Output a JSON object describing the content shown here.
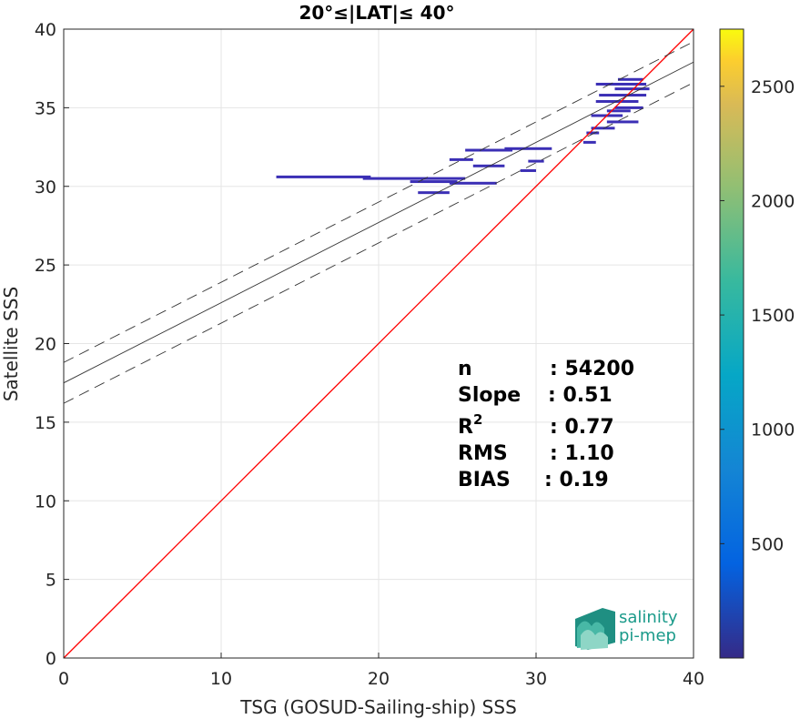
{
  "chart_data": {
    "type": "scatter",
    "title": "20°≤|LAT|≤ 40°",
    "xlabel": "TSG (GOSUD-Sailing-ship) SSS",
    "ylabel": "Satellite SSS",
    "xlim": [
      0,
      40
    ],
    "ylim": [
      0,
      40
    ],
    "xticks": [
      0,
      10,
      20,
      30,
      40
    ],
    "yticks": [
      0,
      5,
      10,
      15,
      20,
      25,
      30,
      35,
      40
    ],
    "grid": true,
    "colorbar": {
      "range": [
        0,
        2750
      ],
      "ticks": [
        500,
        1000,
        1500,
        2000,
        2500
      ],
      "colormap": "parula"
    },
    "reference_line": {
      "name": "1:1",
      "x": [
        0,
        40
      ],
      "y": [
        0,
        40
      ],
      "color": "#ff0000"
    },
    "fit_line": {
      "intercept": 17.5,
      "slope": 0.51,
      "color": "#000000"
    },
    "fit_bounds": {
      "offset": 1.3,
      "style": "dashed"
    },
    "density_segments": [
      {
        "x1": 13.5,
        "x2": 19.5,
        "y": 30.6
      },
      {
        "x1": 19.0,
        "x2": 25.5,
        "y": 30.5
      },
      {
        "x1": 22.0,
        "x2": 25.0,
        "y": 30.3
      },
      {
        "x1": 22.5,
        "x2": 24.5,
        "y": 29.6
      },
      {
        "x1": 24.5,
        "x2": 27.5,
        "y": 30.2
      },
      {
        "x1": 26.0,
        "x2": 28.0,
        "y": 31.3
      },
      {
        "x1": 24.5,
        "x2": 26.0,
        "y": 31.7
      },
      {
        "x1": 25.5,
        "x2": 28.5,
        "y": 32.3
      },
      {
        "x1": 28.0,
        "x2": 31.0,
        "y": 32.4
      },
      {
        "x1": 29.5,
        "x2": 30.5,
        "y": 31.6
      },
      {
        "x1": 29.0,
        "x2": 30.0,
        "y": 31.0
      },
      {
        "x1": 33.0,
        "x2": 33.8,
        "y": 32.8
      },
      {
        "x1": 33.2,
        "x2": 34.0,
        "y": 33.4
      },
      {
        "x1": 33.5,
        "x2": 35.0,
        "y": 33.7
      },
      {
        "x1": 34.5,
        "x2": 36.5,
        "y": 34.1
      },
      {
        "x1": 33.5,
        "x2": 35.5,
        "y": 34.5
      },
      {
        "x1": 35.0,
        "x2": 36.8,
        "y": 35.0
      },
      {
        "x1": 33.8,
        "x2": 36.5,
        "y": 35.4
      },
      {
        "x1": 34.0,
        "x2": 37.0,
        "y": 35.8
      },
      {
        "x1": 35.0,
        "x2": 37.2,
        "y": 36.2
      },
      {
        "x1": 33.8,
        "x2": 37.0,
        "y": 36.5
      },
      {
        "x1": 35.2,
        "x2": 36.8,
        "y": 36.8
      },
      {
        "x1": 34.5,
        "x2": 36.0,
        "y": 34.8
      }
    ],
    "stats": [
      {
        "label": "n",
        "value": ": 54200"
      },
      {
        "label": "Slope",
        "value": ": 0.51"
      },
      {
        "label": "R",
        "sup": "2",
        "value": ": 0.77"
      },
      {
        "label": "RMS",
        "value": ": 1.10"
      },
      {
        "label": "BIAS",
        "value": ": 0.19"
      }
    ]
  },
  "logo": {
    "line1": "salinity",
    "line2": "pi-mep"
  },
  "colors": {
    "points": "#3b2fb5",
    "identity": "#ff0000",
    "fit": "#333333",
    "grid": "#e5e5e5"
  }
}
